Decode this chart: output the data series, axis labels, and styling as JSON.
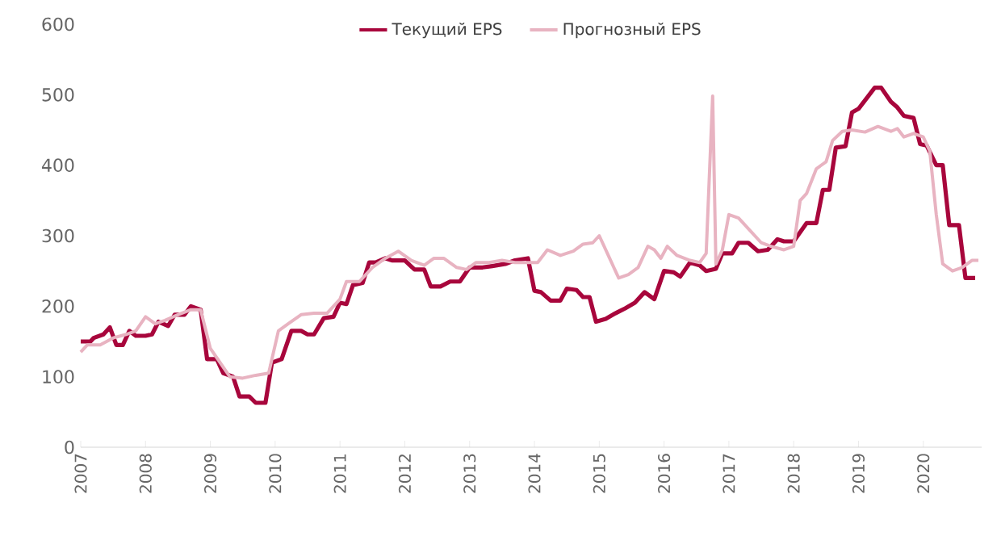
{
  "chart_data": {
    "type": "line",
    "series": [
      {
        "name": "Текущий EPS",
        "color": "#a8063c",
        "x": [
          2007.0,
          2007.15,
          2007.2,
          2007.35,
          2007.45,
          2007.55,
          2007.65,
          2007.75,
          2007.85,
          2008.0,
          2008.1,
          2008.2,
          2008.35,
          2008.45,
          2008.6,
          2008.7,
          2008.85,
          2008.95,
          2009.1,
          2009.2,
          2009.35,
          2009.45,
          2009.6,
          2009.7,
          2009.85,
          2009.95,
          2010.1,
          2010.25,
          2010.4,
          2010.5,
          2010.6,
          2010.75,
          2010.9,
          2011.0,
          2011.1,
          2011.2,
          2011.35,
          2011.45,
          2011.55,
          2011.7,
          2011.8,
          2012.0,
          2012.15,
          2012.3,
          2012.4,
          2012.55,
          2012.7,
          2012.85,
          2013.0,
          2013.2,
          2013.35,
          2013.55,
          2013.7,
          2013.9,
          2014.0,
          2014.1,
          2014.25,
          2014.4,
          2014.5,
          2014.65,
          2014.75,
          2014.85,
          2014.95,
          2015.1,
          2015.25,
          2015.4,
          2015.55,
          2015.7,
          2015.85,
          2016.0,
          2016.15,
          2016.25,
          2016.4,
          2016.55,
          2016.65,
          2016.8,
          2016.9,
          2017.05,
          2017.15,
          2017.3,
          2017.45,
          2017.6,
          2017.75,
          2017.85,
          2018.0,
          2018.1,
          2018.2,
          2018.35,
          2018.45,
          2018.55,
          2018.65,
          2018.8,
          2018.9,
          2019.0,
          2019.1,
          2019.25,
          2019.35,
          2019.5,
          2019.6,
          2019.7,
          2019.85,
          2019.95,
          2020.05,
          2020.2,
          2020.3,
          2020.4,
          2020.55,
          2020.65,
          2020.8
        ],
        "values": [
          150,
          150,
          155,
          160,
          170,
          145,
          145,
          165,
          158,
          158,
          160,
          178,
          172,
          188,
          188,
          200,
          195,
          125,
          125,
          105,
          100,
          72,
          72,
          63,
          63,
          120,
          125,
          165,
          165,
          160,
          160,
          183,
          185,
          205,
          203,
          230,
          233,
          262,
          262,
          268,
          265,
          265,
          252,
          252,
          228,
          228,
          235,
          235,
          255,
          255,
          257,
          260,
          265,
          268,
          222,
          220,
          208,
          208,
          225,
          223,
          213,
          213,
          178,
          182,
          190,
          197,
          205,
          220,
          210,
          250,
          248,
          242,
          262,
          258,
          250,
          253,
          275,
          275,
          290,
          290,
          278,
          280,
          295,
          292,
          292,
          305,
          318,
          318,
          365,
          365,
          425,
          427,
          475,
          480,
          492,
          510,
          510,
          490,
          482,
          470,
          467,
          430,
          428,
          400,
          400,
          315,
          315,
          240,
          240
        ]
      },
      {
        "name": "Прогнозный EPS",
        "color": "#e8b3c1",
        "x": [
          2007.0,
          2007.1,
          2007.3,
          2007.5,
          2007.7,
          2007.85,
          2008.0,
          2008.15,
          2008.3,
          2008.5,
          2008.7,
          2008.85,
          2009.0,
          2009.15,
          2009.3,
          2009.5,
          2009.7,
          2009.9,
          2010.05,
          2010.2,
          2010.4,
          2010.6,
          2010.8,
          2011.0,
          2011.1,
          2011.3,
          2011.5,
          2011.7,
          2011.9,
          2012.1,
          2012.3,
          2012.45,
          2012.6,
          2012.8,
          2012.95,
          2013.1,
          2013.3,
          2013.5,
          2013.7,
          2013.9,
          2014.05,
          2014.2,
          2014.4,
          2014.6,
          2014.75,
          2014.9,
          2015.0,
          2015.15,
          2015.3,
          2015.45,
          2015.6,
          2015.75,
          2015.85,
          2015.95,
          2016.05,
          2016.2,
          2016.4,
          2016.55,
          2016.65,
          2016.75,
          2016.8,
          2016.9,
          2017.0,
          2017.15,
          2017.35,
          2017.5,
          2017.65,
          2017.85,
          2018.0,
          2018.1,
          2018.2,
          2018.35,
          2018.5,
          2018.6,
          2018.75,
          2018.9,
          2019.1,
          2019.3,
          2019.5,
          2019.6,
          2019.7,
          2019.85,
          2020.0,
          2020.1,
          2020.2,
          2020.3,
          2020.45,
          2020.6,
          2020.75,
          2020.85
        ],
        "values": [
          135,
          145,
          145,
          155,
          160,
          165,
          185,
          175,
          180,
          188,
          195,
          195,
          140,
          120,
          100,
          98,
          102,
          105,
          165,
          175,
          188,
          190,
          190,
          210,
          235,
          235,
          255,
          268,
          278,
          265,
          258,
          268,
          268,
          255,
          252,
          262,
          262,
          265,
          262,
          262,
          262,
          280,
          272,
          278,
          288,
          290,
          300,
          270,
          240,
          245,
          255,
          285,
          280,
          268,
          285,
          272,
          265,
          262,
          275,
          498,
          260,
          280,
          330,
          325,
          305,
          290,
          285,
          280,
          285,
          350,
          360,
          395,
          405,
          435,
          448,
          450,
          447,
          455,
          448,
          452,
          440,
          445,
          440,
          420,
          330,
          260,
          250,
          255,
          265,
          265
        ]
      }
    ],
    "xlim": [
      2007,
      2020.9
    ],
    "xticks": [
      2007,
      2008,
      2009,
      2010,
      2011,
      2012,
      2013,
      2014,
      2015,
      2016,
      2017,
      2018,
      2019,
      2020
    ],
    "ylim": [
      0,
      600
    ],
    "yticks": [
      0,
      100,
      200,
      300,
      400,
      500,
      600
    ],
    "legend": "top",
    "grid": false,
    "marker": "none",
    "line_style": "solid"
  }
}
